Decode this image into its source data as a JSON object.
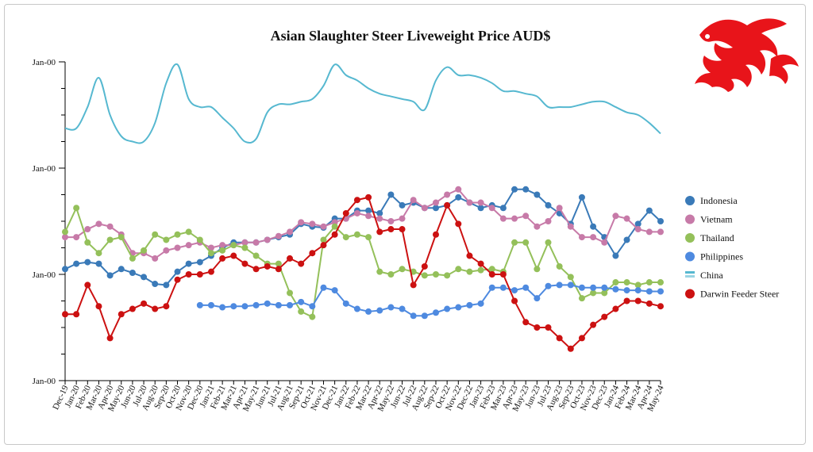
{
  "chart_data": {
    "type": "line",
    "title": "Asian Slaughter Steer Liveweight Price AUD$",
    "y_tick_labels": [
      "Jan-00",
      "Jan-00",
      "Jan-00",
      "Jan-00"
    ],
    "ylim": [
      0,
      6
    ],
    "grid": false,
    "legend_position": "right",
    "categories": [
      "Dec-19",
      "Jan-20",
      "Feb-20",
      "Mar-20",
      "Apr-20",
      "May-20",
      "Jun-20",
      "Jul-20",
      "Aug-20",
      "Sep-20",
      "Oct-20",
      "Nov-20",
      "Dec-20",
      "Jan-21",
      "Feb-21",
      "Mar-21",
      "Apr-21",
      "May-21",
      "Jun-21",
      "Jul-21",
      "Aug-21",
      "Sep-21",
      "Oct-21",
      "Nov-21",
      "Dec-21",
      "Jan-22",
      "Feb-22",
      "Mar-22",
      "Apr-22",
      "May-22",
      "Jun-22",
      "Jul-22",
      "Aug-22",
      "Sep-22",
      "Oct-22",
      "Nov-22",
      "Dec-22",
      "Jan-23",
      "Feb-23",
      "Mar-23",
      "Apr-23",
      "May-23",
      "Jun-23",
      "Jul-23",
      "Aug-23",
      "Sep-23",
      "Oct-23",
      "Nov-23",
      "Dec-23",
      "Jan-24",
      "Feb-24",
      "Mar-24",
      "Apr-24",
      "May-24"
    ],
    "x_tick_labels": [
      "Dec-19",
      "Jan-20",
      "Feb-20",
      "Mar-20",
      "Apr-20",
      "May-20",
      "Jun-20",
      "Jul-20",
      "Aug-20",
      "Sep-20",
      "Oct-20",
      "Nov-20",
      "Dec-20",
      "Jan-21",
      "Feb-21",
      "Mar-21",
      "Apr-21",
      "May-21",
      "Jun-21",
      "Jul-21",
      "Aug-21",
      "Sep-21",
      "Oct-21",
      "Nov-21",
      "Dec-21",
      "Jan-22",
      "Feb-22",
      "Mar-22",
      "Apr-22",
      "May-22",
      "Jun-22",
      "Jul-22",
      "Aug-22",
      "Sep-22",
      "Oct-22",
      "Nov-22",
      "Dec-22",
      "Jan-23",
      "Feb-23",
      "Mar-23",
      "Apr-23",
      "May-23",
      "Jun-23",
      "Jul-23",
      "Aug-23",
      "Sep-23",
      "Oct-23",
      "Nov-23",
      "Dec-23",
      "Jan-24",
      "Feb-24",
      "Mar-24",
      "Apr-24",
      "May-24"
    ],
    "series": [
      {
        "name": "Indonesia",
        "color": "#3a7ab8",
        "style": "line-markers",
        "values": [
          2.1,
          2.2,
          2.23,
          2.2,
          1.98,
          2.1,
          2.03,
          1.95,
          1.82,
          1.8,
          2.05,
          2.2,
          2.23,
          2.35,
          2.5,
          2.6,
          2.6,
          2.6,
          2.65,
          2.7,
          2.75,
          2.95,
          2.9,
          2.88,
          3.05,
          3.05,
          3.2,
          3.2,
          3.15,
          3.5,
          3.3,
          3.35,
          3.25,
          3.25,
          3.3,
          3.45,
          3.35,
          3.25,
          3.3,
          3.25,
          3.6,
          3.6,
          3.5,
          3.3,
          3.15,
          2.95,
          3.45,
          2.9,
          2.7,
          2.35,
          2.65,
          2.95,
          3.2,
          3.0
        ]
      },
      {
        "name": "Vietnam",
        "color": "#c77aa8",
        "style": "line-markers",
        "values": [
          2.7,
          2.7,
          2.85,
          2.95,
          2.9,
          2.75,
          2.4,
          2.4,
          2.3,
          2.45,
          2.5,
          2.55,
          2.6,
          2.5,
          2.55,
          2.55,
          2.6,
          2.6,
          2.65,
          2.72,
          2.8,
          2.98,
          2.95,
          2.9,
          2.98,
          3.05,
          3.15,
          3.1,
          3.05,
          3.0,
          3.05,
          3.4,
          3.25,
          3.35,
          3.5,
          3.6,
          3.35,
          3.35,
          3.25,
          3.05,
          3.05,
          3.1,
          2.9,
          3.0,
          3.25,
          2.9,
          2.7,
          2.7,
          2.6,
          3.1,
          3.05,
          2.85,
          2.8,
          2.8
        ]
      },
      {
        "name": "Thailand",
        "color": "#94c05a",
        "style": "line-markers",
        "values": [
          2.8,
          3.25,
          2.6,
          2.4,
          2.65,
          2.7,
          2.3,
          2.45,
          2.75,
          2.65,
          2.75,
          2.8,
          2.65,
          2.4,
          2.45,
          2.55,
          2.5,
          2.35,
          2.2,
          2.2,
          1.65,
          1.3,
          1.2,
          2.65,
          2.9,
          2.7,
          2.75,
          2.7,
          2.05,
          2.0,
          2.1,
          2.05,
          1.98,
          2.0,
          1.98,
          2.1,
          2.05,
          2.08,
          2.1,
          2.05,
          2.6,
          2.6,
          2.1,
          2.6,
          2.15,
          1.95,
          1.55,
          1.65,
          1.65,
          1.85,
          1.85,
          1.8,
          1.85,
          1.85
        ]
      },
      {
        "name": "Philippines",
        "color": "#4e8ae0",
        "style": "line-markers",
        "values": [
          null,
          null,
          null,
          null,
          null,
          null,
          null,
          null,
          null,
          null,
          null,
          null,
          1.42,
          1.42,
          1.38,
          1.4,
          1.4,
          1.42,
          1.45,
          1.42,
          1.42,
          1.48,
          1.4,
          1.75,
          1.7,
          1.45,
          1.35,
          1.3,
          1.32,
          1.38,
          1.35,
          1.22,
          1.22,
          1.28,
          1.35,
          1.38,
          1.42,
          1.45,
          1.75,
          1.75,
          1.7,
          1.75,
          1.55,
          1.78,
          1.8,
          1.8,
          1.75,
          1.75,
          1.75,
          1.72,
          1.7,
          1.7,
          1.68,
          1.68
        ]
      },
      {
        "name": "China",
        "color": "#56b8d0",
        "style": "line",
        "values": [
          4.75,
          4.75,
          5.15,
          5.7,
          5.0,
          4.6,
          4.5,
          4.5,
          4.85,
          5.6,
          5.95,
          5.3,
          5.15,
          5.15,
          4.95,
          4.75,
          4.5,
          4.55,
          5.05,
          5.2,
          5.2,
          5.25,
          5.3,
          5.55,
          5.95,
          5.75,
          5.65,
          5.5,
          5.4,
          5.35,
          5.3,
          5.25,
          5.1,
          5.65,
          5.9,
          5.75,
          5.75,
          5.7,
          5.6,
          5.45,
          5.45,
          5.4,
          5.35,
          5.15,
          5.15,
          5.15,
          5.2,
          5.25,
          5.25,
          5.15,
          5.05,
          5.0,
          4.85,
          4.65
        ]
      },
      {
        "name": "Darwin Feeder Steer",
        "color": "#cc1111",
        "style": "line-markers",
        "values": [
          1.25,
          1.25,
          1.8,
          1.4,
          0.8,
          1.25,
          1.35,
          1.45,
          1.35,
          1.4,
          1.9,
          2.0,
          2.0,
          2.05,
          2.3,
          2.35,
          2.2,
          2.1,
          2.15,
          2.1,
          2.3,
          2.2,
          2.4,
          2.55,
          2.75,
          3.15,
          3.4,
          3.45,
          2.8,
          2.85,
          2.85,
          1.8,
          2.15,
          2.75,
          3.3,
          2.95,
          2.35,
          2.2,
          2.0,
          2.0,
          1.5,
          1.1,
          1.0,
          1.0,
          0.8,
          0.6,
          0.8,
          1.05,
          1.2,
          1.35,
          1.5,
          1.5,
          1.45,
          1.4
        ]
      }
    ]
  },
  "logo": {
    "name": "red-dragon-emblem",
    "color": "#e8141a"
  }
}
